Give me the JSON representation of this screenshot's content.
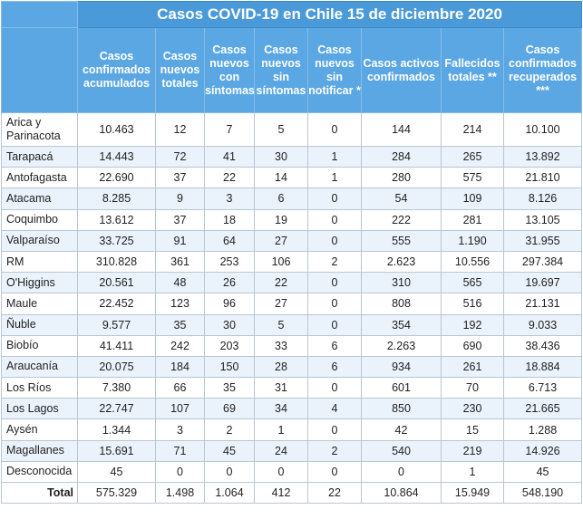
{
  "title": "Casos COVID-19 en Chile 15 de diciembre 2020",
  "columns": [
    "Casos confirmados acumulados",
    "Casos nuevos totales",
    "Casos nuevos con síntomas",
    "Casos nuevos sin síntomas",
    "Casos nuevos sin notificar *",
    "Casos activos confirmados",
    "Fallecidos totales **",
    "Casos confirmados recuperados ***"
  ],
  "rows": [
    {
      "region": "Arica y Parinacota",
      "values": [
        "10.463",
        "12",
        "7",
        "5",
        "0",
        "144",
        "214",
        "10.100"
      ]
    },
    {
      "region": "Tarapacá",
      "values": [
        "14.443",
        "72",
        "41",
        "30",
        "1",
        "284",
        "265",
        "13.892"
      ]
    },
    {
      "region": "Antofagasta",
      "values": [
        "22.690",
        "37",
        "22",
        "14",
        "1",
        "280",
        "575",
        "21.810"
      ]
    },
    {
      "region": "Atacama",
      "values": [
        "8.285",
        "9",
        "3",
        "6",
        "0",
        "54",
        "109",
        "8.126"
      ]
    },
    {
      "region": "Coquimbo",
      "values": [
        "13.612",
        "37",
        "18",
        "19",
        "0",
        "222",
        "281",
        "13.105"
      ]
    },
    {
      "region": "Valparaíso",
      "values": [
        "33.725",
        "91",
        "64",
        "27",
        "0",
        "555",
        "1.190",
        "31.955"
      ]
    },
    {
      "region": "RM",
      "values": [
        "310.828",
        "361",
        "253",
        "106",
        "2",
        "2.623",
        "10.556",
        "297.384"
      ]
    },
    {
      "region": "O'Higgins",
      "values": [
        "20.561",
        "48",
        "26",
        "22",
        "0",
        "310",
        "565",
        "19.697"
      ]
    },
    {
      "region": "Maule",
      "values": [
        "22.452",
        "123",
        "96",
        "27",
        "0",
        "808",
        "516",
        "21.131"
      ]
    },
    {
      "region": "Ñuble",
      "values": [
        "9.577",
        "35",
        "30",
        "5",
        "0",
        "354",
        "192",
        "9.033"
      ]
    },
    {
      "region": "Biobío",
      "values": [
        "41.411",
        "242",
        "203",
        "33",
        "6",
        "2.263",
        "690",
        "38.436"
      ]
    },
    {
      "region": "Araucanía",
      "values": [
        "20.075",
        "184",
        "150",
        "28",
        "6",
        "934",
        "261",
        "18.884"
      ]
    },
    {
      "region": "Los Ríos",
      "values": [
        "7.380",
        "66",
        "35",
        "31",
        "0",
        "601",
        "70",
        "6.713"
      ]
    },
    {
      "region": "Los Lagos",
      "values": [
        "22.747",
        "107",
        "69",
        "34",
        "4",
        "850",
        "230",
        "21.665"
      ]
    },
    {
      "region": "Aysén",
      "values": [
        "1.344",
        "3",
        "2",
        "1",
        "0",
        "42",
        "15",
        "1.288"
      ]
    },
    {
      "region": "Magallanes",
      "values": [
        "15.691",
        "71",
        "45",
        "24",
        "2",
        "540",
        "219",
        "14.926"
      ]
    },
    {
      "region": "Desconocida",
      "values": [
        "45",
        "0",
        "0",
        "0",
        "0",
        "0",
        "1",
        "45"
      ]
    }
  ],
  "total": {
    "label": "Total",
    "values": [
      "575.329",
      "1.498",
      "1.064",
      "412",
      "22",
      "10.864",
      "15.949",
      "548.190"
    ]
  }
}
